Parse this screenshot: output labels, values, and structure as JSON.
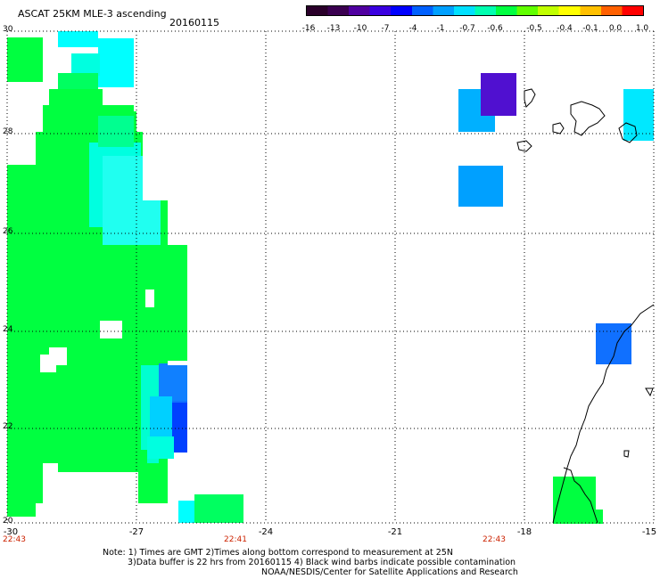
{
  "header": {
    "title": "ASCAT 25KM MLE-3 ascending",
    "date": "20160115"
  },
  "colorbar": {
    "tick_labels": [
      "-16",
      "-13",
      "-10",
      "-7",
      "-4",
      "-1",
      "-0.7",
      "-0.6",
      "-0.5",
      "-0.4",
      "-0.1",
      "0.0",
      "1.0"
    ],
    "colors": [
      "#2a002a",
      "#3a0050",
      "#5000a0",
      "#3a00e0",
      "#0000ff",
      "#0060ff",
      "#00a0ff",
      "#00e0ff",
      "#00ffb0",
      "#00ff40",
      "#60ff00",
      "#c0ff00",
      "#ffff00",
      "#ffc000",
      "#ff6000",
      "#ff0000"
    ]
  },
  "axes": {
    "lat_labels": [
      "30",
      "28",
      "26",
      "24",
      "22",
      "20"
    ],
    "lon_labels": [
      "-30",
      "-27",
      "-24",
      "-21",
      "-18",
      "-15"
    ],
    "time_labels": [
      "22:43",
      "22:41",
      "22:43"
    ],
    "lat_range": [
      20,
      30
    ],
    "lon_range": [
      -30,
      -15
    ]
  },
  "notes": {
    "line1": "Note: 1) Times are GMT 2)Times along bottom correspond to measurement at 25N",
    "line2": "3)Data buffer is 22 hrs from 20160115 4) Black wind barbs indicate possible contamination",
    "line3": "NOAA/NESDIS/Center for Satellite Applications and Research"
  }
}
